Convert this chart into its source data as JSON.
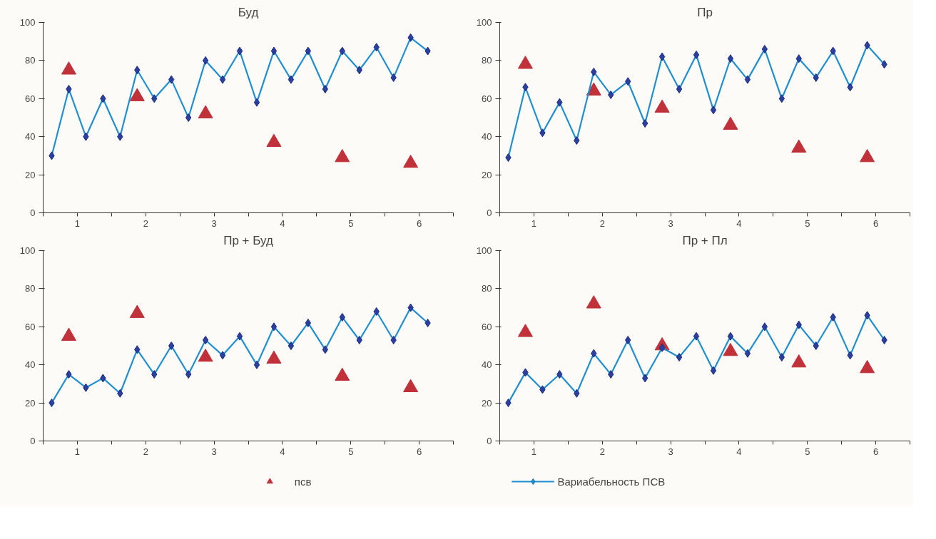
{
  "chart_data": [
    {
      "type": "line",
      "title": "Буд",
      "xlim": [
        0,
        6
      ],
      "xticks": [
        {
          "value": 0,
          "label": null
        },
        {
          "value": 0.5,
          "label": "1"
        },
        {
          "value": 1,
          "label": null
        },
        {
          "value": 1.5,
          "label": "2"
        },
        {
          "value": 2,
          "label": null
        },
        {
          "value": 2.5,
          "label": "3"
        },
        {
          "value": 3,
          "label": null
        },
        {
          "value": 3.5,
          "label": "4"
        },
        {
          "value": 4,
          "label": null
        },
        {
          "value": 4.5,
          "label": "5"
        },
        {
          "value": 5,
          "label": null
        },
        {
          "value": 5.5,
          "label": "6"
        },
        {
          "value": 6,
          "label": null
        }
      ],
      "ylim": [
        0,
        100
      ],
      "yticks": [
        0,
        20,
        40,
        60,
        80,
        100
      ],
      "grid": false,
      "legend": "bottom",
      "series": [
        {
          "name": "псв",
          "type": "scatter",
          "marker": "triangle",
          "color": "#c0313a",
          "x": [
            0.375,
            1.375,
            2.375,
            3.375,
            4.375,
            5.375
          ],
          "values": [
            75,
            61,
            52,
            37,
            29,
            26
          ]
        },
        {
          "name": "Вариабельность ПСВ",
          "marker": "diamond",
          "color": "#1f8fd0",
          "x": [
            0.125,
            0.375,
            0.625,
            0.875,
            1.125,
            1.375,
            1.625,
            1.875,
            2.125,
            2.375,
            2.625,
            2.875,
            3.125,
            3.375,
            3.625,
            3.875,
            4.125,
            4.375,
            4.625,
            4.875,
            5.125,
            5.375,
            5.625
          ],
          "values": [
            30,
            65,
            40,
            60,
            40,
            75,
            60,
            70,
            50,
            80,
            70,
            85,
            58,
            85,
            70,
            85,
            65,
            85,
            75,
            87,
            71,
            92,
            85
          ]
        }
      ]
    },
    {
      "type": "line",
      "title": "Пр",
      "xlim": [
        0,
        6
      ],
      "xticks": [
        {
          "value": 0,
          "label": null
        },
        {
          "value": 0.5,
          "label": "1"
        },
        {
          "value": 1,
          "label": null
        },
        {
          "value": 1.5,
          "label": "2"
        },
        {
          "value": 2,
          "label": null
        },
        {
          "value": 2.5,
          "label": "3"
        },
        {
          "value": 3,
          "label": null
        },
        {
          "value": 3.5,
          "label": "4"
        },
        {
          "value": 4,
          "label": null
        },
        {
          "value": 4.5,
          "label": "5"
        },
        {
          "value": 5,
          "label": null
        },
        {
          "value": 5.5,
          "label": "6"
        },
        {
          "value": 6,
          "label": null
        }
      ],
      "ylim": [
        0,
        100
      ],
      "yticks": [
        0,
        20,
        40,
        60,
        80,
        100
      ],
      "grid": false,
      "legend": "bottom",
      "series": [
        {
          "type": "scatter",
          "marker": "triangle",
          "color": "#c0313a",
          "x": [
            0.375,
            1.375,
            2.375,
            3.375,
            4.375,
            5.375
          ],
          "values": [
            78,
            64,
            55,
            46,
            34,
            29
          ]
        },
        {
          "marker": "diamond",
          "color": "#1f8fd0",
          "x": [
            0.125,
            0.375,
            0.625,
            0.875,
            1.125,
            1.375,
            1.625,
            1.875,
            2.125,
            2.375,
            2.625,
            2.875,
            3.125,
            3.375,
            3.625,
            3.875,
            4.125,
            4.375,
            4.625,
            4.875,
            5.125,
            5.375,
            5.625
          ],
          "values": [
            29,
            66,
            42,
            58,
            38,
            74,
            62,
            69,
            47,
            82,
            65,
            83,
            54,
            81,
            70,
            86,
            60,
            81,
            71,
            85,
            66,
            88,
            78
          ]
        }
      ]
    },
    {
      "type": "line",
      "title": "Пр + Буд",
      "xlim": [
        0,
        6
      ],
      "xticks": [
        {
          "value": 0,
          "label": null
        },
        {
          "value": 0.5,
          "label": "1"
        },
        {
          "value": 1,
          "label": null
        },
        {
          "value": 1.5,
          "label": "2"
        },
        {
          "value": 2,
          "label": null
        },
        {
          "value": 2.5,
          "label": "3"
        },
        {
          "value": 3,
          "label": null
        },
        {
          "value": 3.5,
          "label": "4"
        },
        {
          "value": 4,
          "label": null
        },
        {
          "value": 4.5,
          "label": "5"
        },
        {
          "value": 5,
          "label": null
        },
        {
          "value": 5.5,
          "label": "6"
        },
        {
          "value": 6,
          "label": null
        }
      ],
      "ylim": [
        0,
        100
      ],
      "yticks": [
        0,
        20,
        40,
        60,
        80,
        100
      ],
      "grid": false,
      "legend": "bottom",
      "series": [
        {
          "type": "scatter",
          "marker": "triangle",
          "color": "#c0313a",
          "x": [
            0.375,
            1.375,
            2.375,
            3.375,
            4.375,
            5.375
          ],
          "values": [
            55,
            67,
            44,
            43,
            34,
            28
          ]
        },
        {
          "marker": "diamond",
          "color": "#1f8fd0",
          "x": [
            0.125,
            0.375,
            0.625,
            0.875,
            1.125,
            1.375,
            1.625,
            1.875,
            2.125,
            2.375,
            2.625,
            2.875,
            3.125,
            3.375,
            3.625,
            3.875,
            4.125,
            4.375,
            4.625,
            4.875,
            5.125,
            5.375,
            5.625
          ],
          "values": [
            20,
            35,
            28,
            33,
            25,
            48,
            35,
            50,
            35,
            53,
            45,
            55,
            40,
            60,
            50,
            62,
            48,
            65,
            53,
            68,
            53,
            70,
            62
          ]
        }
      ]
    },
    {
      "type": "line",
      "title": "Пр + Пл",
      "xlim": [
        0,
        6
      ],
      "xticks": [
        {
          "value": 0,
          "label": null
        },
        {
          "value": 0.5,
          "label": "1"
        },
        {
          "value": 1,
          "label": null
        },
        {
          "value": 1.5,
          "label": "2"
        },
        {
          "value": 2,
          "label": null
        },
        {
          "value": 2.5,
          "label": "3"
        },
        {
          "value": 3,
          "label": null
        },
        {
          "value": 3.5,
          "label": "4"
        },
        {
          "value": 4,
          "label": null
        },
        {
          "value": 4.5,
          "label": "5"
        },
        {
          "value": 5,
          "label": null
        },
        {
          "value": 5.5,
          "label": "6"
        },
        {
          "value": 6,
          "label": null
        }
      ],
      "ylim": [
        0,
        100
      ],
      "yticks": [
        0,
        20,
        40,
        60,
        80,
        100
      ],
      "grid": false,
      "legend": "bottom",
      "series": [
        {
          "type": "scatter",
          "marker": "triangle",
          "color": "#c0313a",
          "x": [
            0.375,
            1.375,
            2.375,
            3.375,
            4.375,
            5.375
          ],
          "values": [
            57,
            72,
            50,
            47,
            41,
            38
          ]
        },
        {
          "marker": "diamond",
          "color": "#1f8fd0",
          "x": [
            0.125,
            0.375,
            0.625,
            0.875,
            1.125,
            1.375,
            1.625,
            1.875,
            2.125,
            2.375,
            2.625,
            2.875,
            3.125,
            3.375,
            3.625,
            3.875,
            4.125,
            4.375,
            4.625,
            4.875,
            5.125,
            5.375,
            5.625
          ],
          "values": [
            20,
            36,
            27,
            35,
            25,
            46,
            35,
            53,
            33,
            49,
            44,
            55,
            37,
            55,
            46,
            60,
            44,
            61,
            50,
            65,
            45,
            66,
            53
          ]
        }
      ]
    }
  ]
}
